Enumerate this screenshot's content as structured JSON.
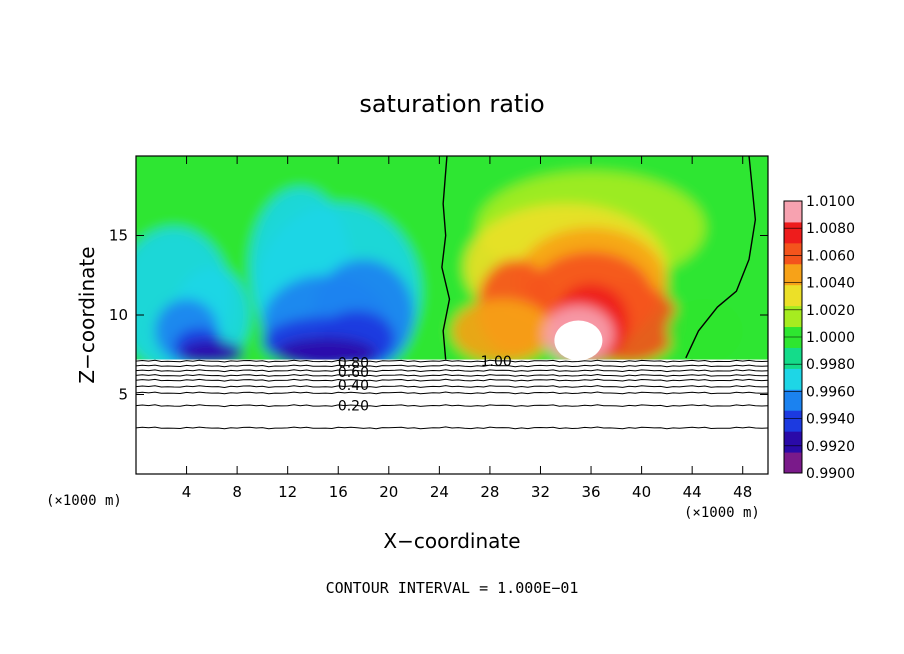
{
  "chart_data": {
    "type": "heatmap",
    "title": "saturation ratio",
    "xlabel": "X−coordinate",
    "ylabel": "Z−coordinate",
    "x_unit": "(×1000 m)",
    "z_unit": "(×1000 m)",
    "xlim": [
      0,
      50
    ],
    "ylim": [
      0,
      20
    ],
    "x_ticks": [
      4,
      8,
      12,
      16,
      20,
      24,
      28,
      32,
      36,
      40,
      44,
      48
    ],
    "y_ticks": [
      5,
      10,
      15
    ],
    "footer": "CONTOUR INTERVAL = 1.000E−01",
    "colorbar": {
      "levels": [
        "1.0100",
        "1.0080",
        "1.0060",
        "1.0040",
        "1.0020",
        "1.0000",
        "0.9980",
        "0.9960",
        "0.9940",
        "0.9920",
        "0.9900"
      ],
      "colors": [
        "#7a1a8a",
        "#2a0aa8",
        "#1c3ae0",
        "#1b82f0",
        "#1ed6e6",
        "#14dc8a",
        "#2ee630",
        "#a6ec20",
        "#ece028",
        "#f7a218",
        "#f4541c",
        "#ee1c1c",
        "#f7a2b0"
      ]
    },
    "contour_labels": [
      {
        "text": "1.00",
        "x": 28.5,
        "z": 7.1
      },
      {
        "text": "0.80",
        "x": 17.2,
        "z": 7.0
      },
      {
        "text": "0.60",
        "x": 17.2,
        "z": 6.4
      },
      {
        "text": "0.40",
        "x": 17.2,
        "z": 5.6
      },
      {
        "text": "0.20",
        "x": 17.2,
        "z": 4.3
      }
    ]
  }
}
